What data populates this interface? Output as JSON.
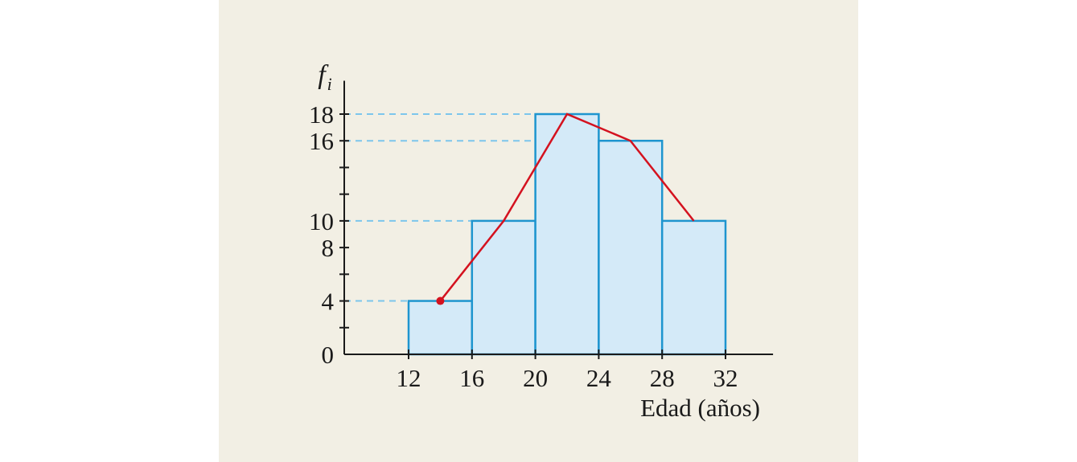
{
  "chart_data": {
    "type": "bar",
    "subtype": "histogram-with-frequency-polygon",
    "bins": [
      {
        "from": 12,
        "to": 16,
        "value": 4
      },
      {
        "from": 16,
        "to": 20,
        "value": 10
      },
      {
        "from": 20,
        "to": 24,
        "value": 18
      },
      {
        "from": 24,
        "to": 28,
        "value": 16
      },
      {
        "from": 28,
        "to": 32,
        "value": 10
      }
    ],
    "polygon": {
      "x": [
        14,
        18,
        22,
        26,
        30
      ],
      "y": [
        4,
        10,
        18,
        16,
        10
      ]
    },
    "x_ticks": [
      "12",
      "16",
      "20",
      "24",
      "28",
      "32"
    ],
    "y_tick_labels": [
      "0",
      "4",
      "8",
      "10",
      "16",
      "18"
    ],
    "y_label_main": "f",
    "y_label_sub": "i",
    "xlabel": "Edad (años)",
    "xlim": [
      7.5,
      35
    ],
    "ylim": [
      0,
      20.5
    ],
    "grid": "dashed guide lines at 4, 10, 16, 18",
    "colors": {
      "bar_fill": "#d4eaf8",
      "bar_stroke": "#1e95cf",
      "polygon": "#d4121f",
      "guide": "#7cc6ec",
      "axis": "#1a1a1a",
      "background": "#f2efe4"
    }
  }
}
